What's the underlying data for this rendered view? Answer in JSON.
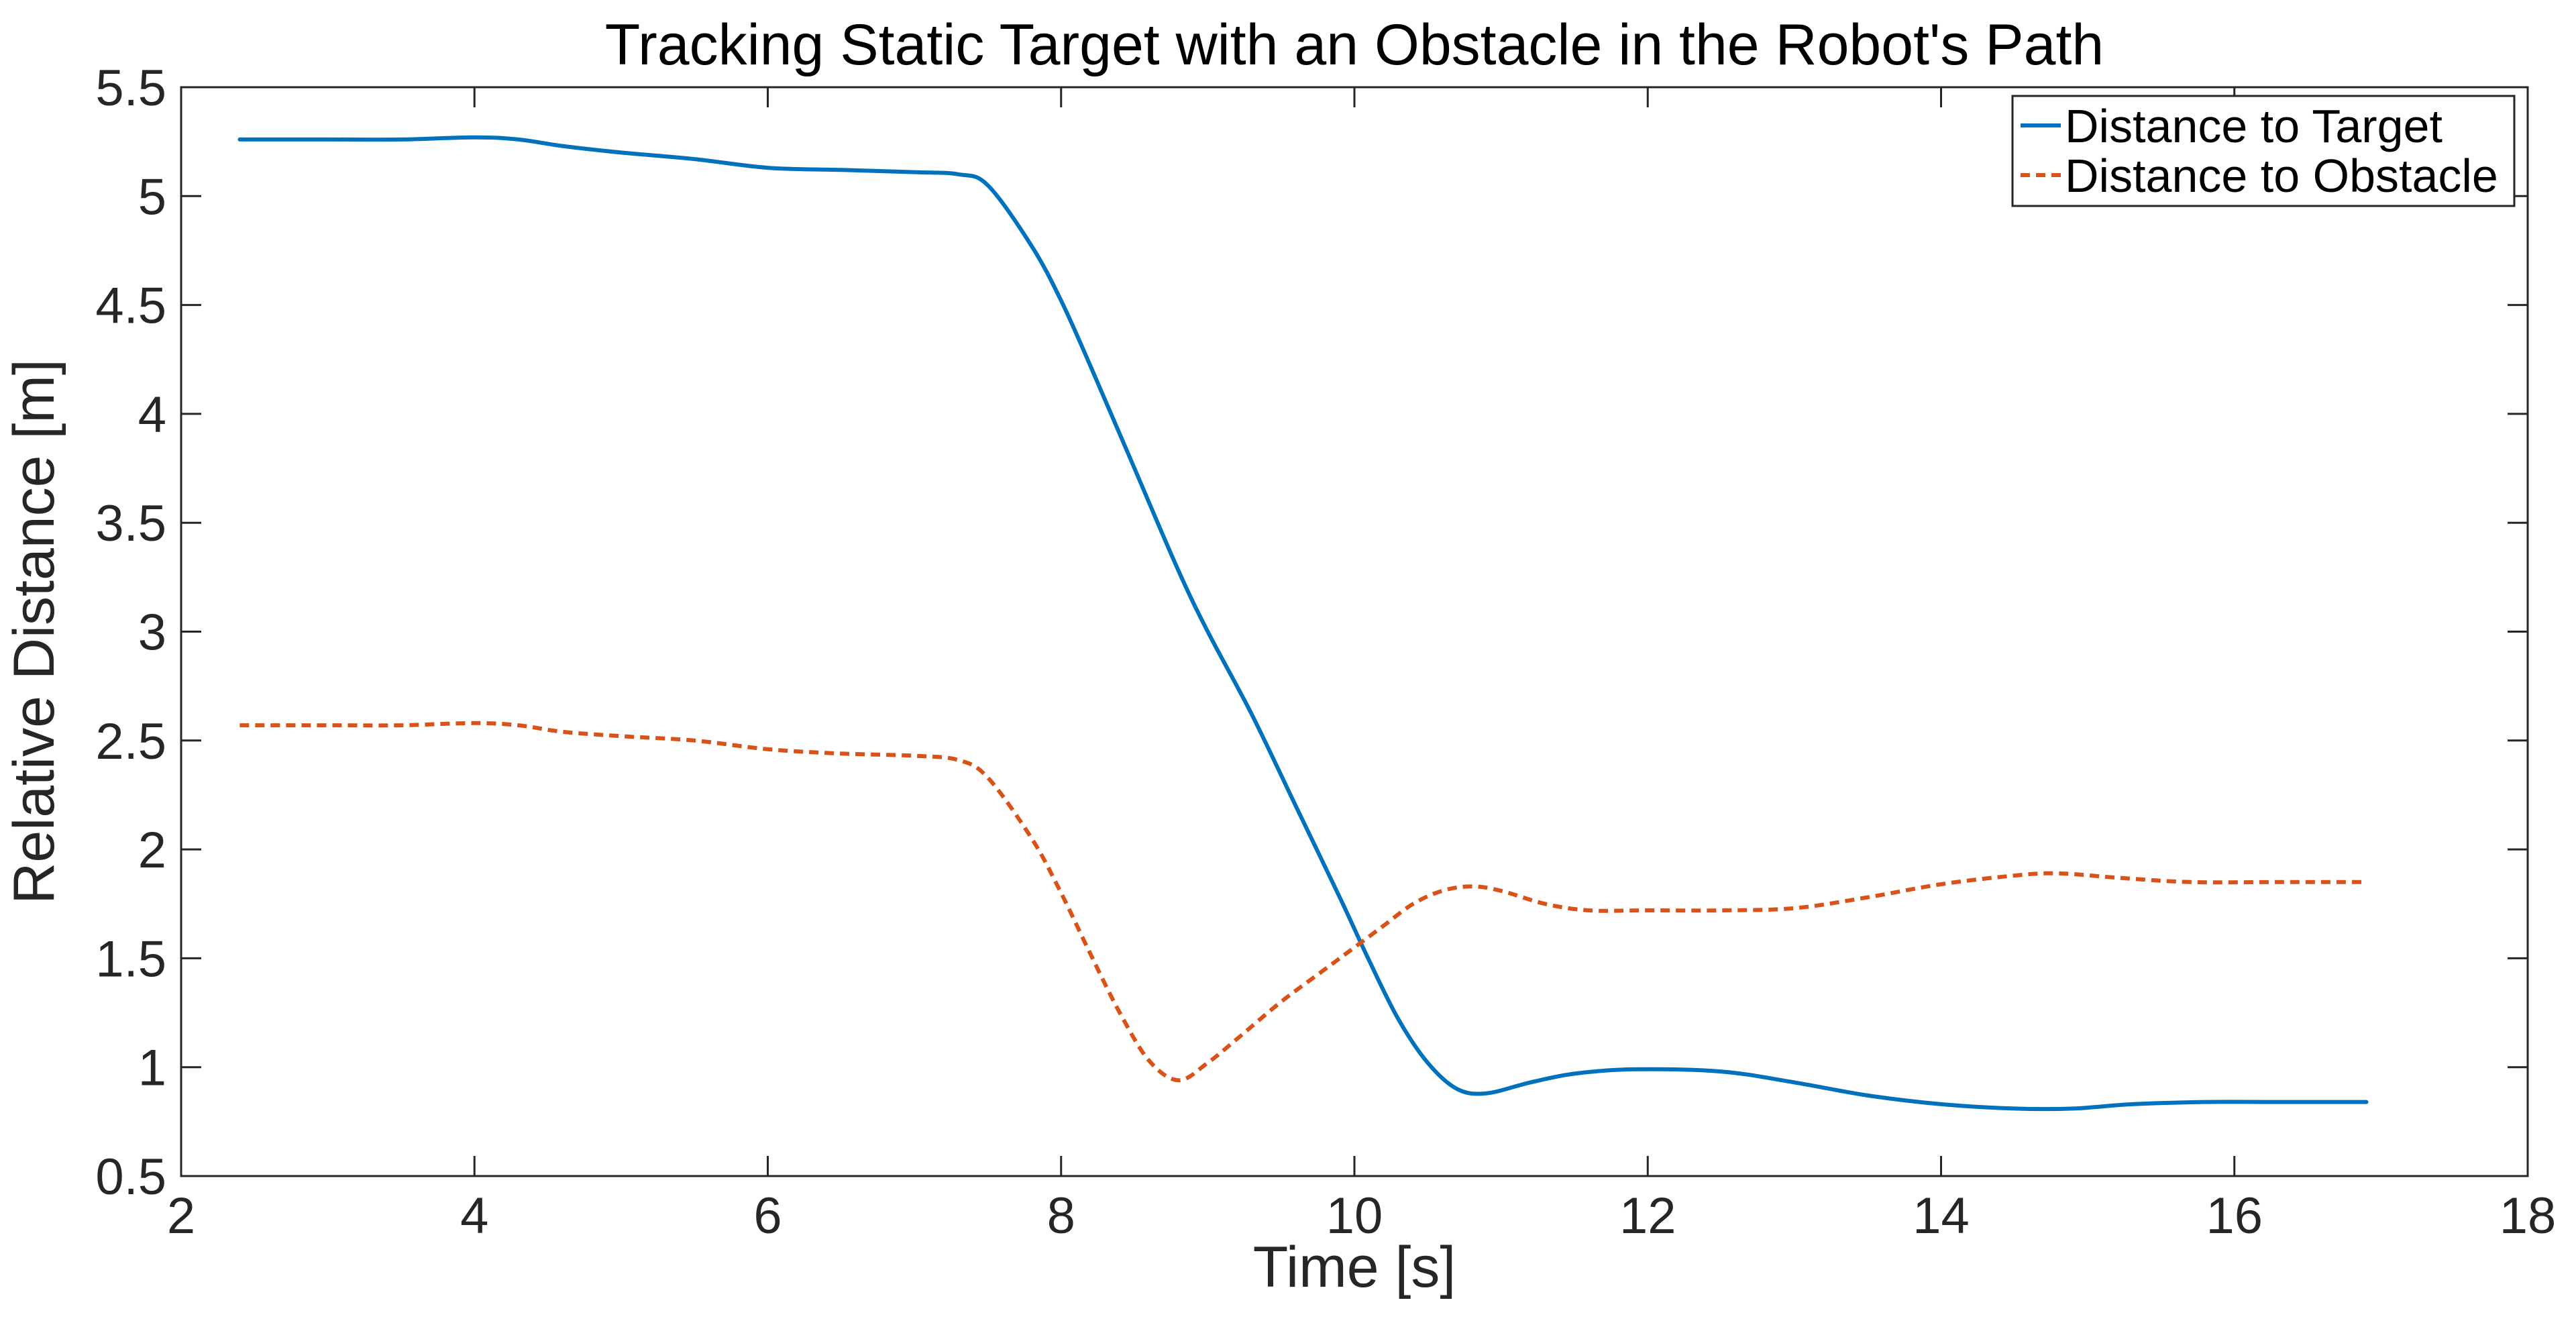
{
  "chart_data": {
    "type": "line",
    "title": "Tracking Static Target with an Obstacle in the Robot's Path",
    "xlabel": "Time [s]",
    "ylabel": "Relative Distance [m]",
    "xlim": [
      2,
      18
    ],
    "ylim": [
      0.5,
      5.5
    ],
    "xticks": [
      2,
      4,
      6,
      8,
      10,
      12,
      14,
      16,
      18
    ],
    "yticks": [
      0.5,
      1,
      1.5,
      2,
      2.5,
      3,
      3.5,
      4,
      4.5,
      5,
      5.5
    ],
    "xtick_labels": [
      "2",
      "4",
      "6",
      "8",
      "10",
      "12",
      "14",
      "16",
      "18"
    ],
    "ytick_labels": [
      "0.5",
      "1",
      "1.5",
      "2",
      "2.5",
      "3",
      "3.5",
      "4",
      "4.5",
      "5",
      "5.5"
    ],
    "grid": false,
    "box": true,
    "legend_position": "top-right",
    "series": [
      {
        "name": "Distance to Target",
        "color": "#0072BD",
        "style": "solid",
        "x": [
          2.4,
          3.0,
          3.5,
          4.0,
          4.3,
          4.6,
          5.0,
          5.5,
          6.0,
          6.5,
          7.0,
          7.3,
          7.5,
          7.8,
          8.0,
          8.2,
          8.5,
          8.8,
          9.0,
          9.3,
          9.6,
          9.9,
          10.1,
          10.3,
          10.5,
          10.7,
          10.9,
          11.2,
          11.5,
          11.9,
          12.5,
          13.0,
          13.5,
          14.0,
          14.5,
          14.9,
          15.3,
          15.8,
          16.3,
          16.9
        ],
        "y": [
          5.26,
          5.26,
          5.26,
          5.27,
          5.26,
          5.23,
          5.2,
          5.17,
          5.13,
          5.12,
          5.11,
          5.1,
          5.05,
          4.77,
          4.52,
          4.22,
          3.75,
          3.28,
          3.0,
          2.62,
          2.2,
          1.78,
          1.49,
          1.22,
          1.02,
          0.9,
          0.88,
          0.93,
          0.97,
          0.99,
          0.98,
          0.93,
          0.87,
          0.83,
          0.81,
          0.81,
          0.83,
          0.84,
          0.84,
          0.84
        ]
      },
      {
        "name": "Distance to Obstacle",
        "color": "#D95319",
        "style": "dashed",
        "x": [
          2.4,
          3.0,
          3.5,
          4.0,
          4.3,
          4.6,
          5.0,
          5.5,
          6.0,
          6.5,
          7.0,
          7.3,
          7.5,
          7.8,
          8.0,
          8.2,
          8.4,
          8.6,
          8.8,
          9.0,
          9.2,
          9.5,
          9.8,
          10.0,
          10.2,
          10.4,
          10.6,
          10.8,
          11.0,
          11.3,
          11.6,
          12.0,
          12.5,
          13.0,
          13.5,
          14.0,
          14.5,
          14.8,
          15.2,
          15.7,
          16.3,
          16.9
        ],
        "y": [
          2.57,
          2.57,
          2.57,
          2.58,
          2.57,
          2.54,
          2.52,
          2.5,
          2.46,
          2.44,
          2.43,
          2.41,
          2.33,
          2.05,
          1.8,
          1.52,
          1.25,
          1.03,
          0.94,
          1.02,
          1.13,
          1.3,
          1.45,
          1.55,
          1.65,
          1.75,
          1.81,
          1.83,
          1.81,
          1.75,
          1.72,
          1.72,
          1.72,
          1.73,
          1.78,
          1.84,
          1.88,
          1.89,
          1.87,
          1.85,
          1.85,
          1.85
        ]
      }
    ]
  }
}
